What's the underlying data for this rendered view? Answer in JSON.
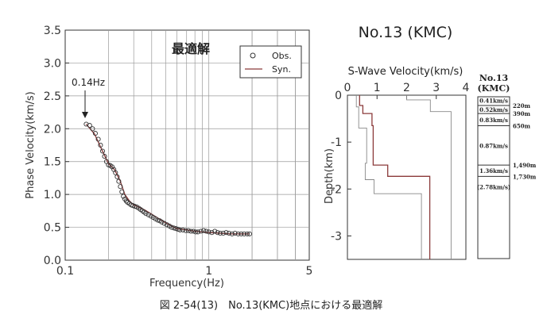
{
  "caption": "図 2-54(13)　No.13(KMC)地点における最適解",
  "chart_data": [
    {
      "type": "scatter",
      "title": "最適解",
      "xlabel": "Frequency(Hz)",
      "ylabel": "Phase Velocity(km/s)",
      "xscale": "log",
      "xlim": [
        0.1,
        5
      ],
      "ylim": [
        0,
        3.5
      ],
      "x_ticks": [
        0.1,
        1,
        5
      ],
      "x_tick_labels": [
        "0.1",
        "1",
        "5"
      ],
      "y_ticks": [
        0,
        0.5,
        1.0,
        1.5,
        2.0,
        2.5,
        3.0,
        3.5
      ],
      "y_tick_labels": [
        "0.0",
        "0.5",
        "1.0",
        "1.5",
        "2.0",
        "2.5",
        "3.0",
        "3.5"
      ],
      "grid": true,
      "legend": "top-right",
      "annotation": {
        "text": "0.14Hz",
        "x": 0.14,
        "y": 2.07
      },
      "series": [
        {
          "name": "Obs.",
          "marker": "open-circle",
          "color": "#333333",
          "x": [
            0.14,
            0.148,
            0.155,
            0.162,
            0.17,
            0.176,
            0.182,
            0.188,
            0.194,
            0.2,
            0.206,
            0.212,
            0.218,
            0.224,
            0.23,
            0.236,
            0.242,
            0.248,
            0.254,
            0.26,
            0.266,
            0.272,
            0.28,
            0.288,
            0.296,
            0.305,
            0.315,
            0.325,
            0.335,
            0.345,
            0.355,
            0.365,
            0.38,
            0.395,
            0.41,
            0.425,
            0.44,
            0.455,
            0.47,
            0.49,
            0.51,
            0.53,
            0.55,
            0.57,
            0.59,
            0.61,
            0.63,
            0.66,
            0.69,
            0.72,
            0.75,
            0.78,
            0.81,
            0.84,
            0.88,
            0.92,
            0.96,
            1.0,
            1.05,
            1.1,
            1.15,
            1.2,
            1.26,
            1.32,
            1.38,
            1.45,
            1.52,
            1.6,
            1.68,
            1.76,
            1.85,
            1.92
          ],
          "y": [
            2.07,
            2.05,
            2.0,
            1.93,
            1.84,
            1.75,
            1.66,
            1.58,
            1.5,
            1.45,
            1.44,
            1.42,
            1.38,
            1.33,
            1.27,
            1.2,
            1.12,
            1.04,
            0.97,
            0.93,
            0.9,
            0.88,
            0.86,
            0.84,
            0.83,
            0.82,
            0.81,
            0.79,
            0.77,
            0.75,
            0.73,
            0.71,
            0.69,
            0.67,
            0.65,
            0.63,
            0.61,
            0.6,
            0.58,
            0.56,
            0.54,
            0.52,
            0.5,
            0.49,
            0.48,
            0.47,
            0.46,
            0.46,
            0.45,
            0.45,
            0.44,
            0.44,
            0.43,
            0.43,
            0.44,
            0.45,
            0.44,
            0.43,
            0.42,
            0.44,
            0.42,
            0.41,
            0.41,
            0.42,
            0.41,
            0.4,
            0.41,
            0.4,
            0.4,
            0.4,
            0.4,
            0.4
          ]
        },
        {
          "name": "Syn.",
          "marker": "line",
          "color": "#8b3a3a",
          "x": [
            0.14,
            0.16,
            0.18,
            0.2,
            0.22,
            0.24,
            0.26,
            0.28,
            0.3,
            0.33,
            0.36,
            0.4,
            0.45,
            0.5,
            0.55,
            0.6,
            0.7,
            0.8,
            0.9,
            1.0,
            1.2,
            1.4,
            1.6,
            1.92
          ],
          "y": [
            2.07,
            1.92,
            1.68,
            1.47,
            1.38,
            1.22,
            1.0,
            0.9,
            0.84,
            0.8,
            0.76,
            0.7,
            0.63,
            0.57,
            0.52,
            0.48,
            0.46,
            0.44,
            0.43,
            0.42,
            0.41,
            0.4,
            0.4,
            0.4
          ]
        }
      ]
    },
    {
      "type": "line",
      "title": "No.13 (KMC)",
      "xlabel": "S-Wave Velocity(km/s)",
      "ylabel": "Depth(km)",
      "xlim": [
        0,
        4
      ],
      "ylim": [
        -3.5,
        0
      ],
      "x_ticks": [
        0,
        1,
        2,
        3,
        4
      ],
      "x_tick_labels": [
        "0",
        "1",
        "2",
        "3",
        "4"
      ],
      "y_ticks": [
        0,
        -1,
        -2,
        -3
      ],
      "y_tick_labels": [
        "0",
        "-1",
        "-2",
        "-3"
      ],
      "series": [
        {
          "role": "best-fit",
          "color": "#8b3a3a",
          "vs": [
            0.41,
            0.52,
            0.83,
            0.87,
            1.36,
            2.78
          ],
          "depth": [
            0.0,
            0.22,
            0.39,
            0.65,
            1.49,
            1.73,
            3.5
          ]
        },
        {
          "role": "lower-bound",
          "color": "#888888",
          "vs": [
            0.3,
            0.38,
            0.65,
            0.6,
            0.9,
            2.5
          ],
          "depth": [
            0.0,
            0.25,
            0.7,
            1.45,
            1.8,
            2.1,
            3.5
          ]
        },
        {
          "role": "upper-bound",
          "color": "#888888",
          "vs": [
            2.0,
            2.8,
            3.5,
            3.5,
            3.5,
            3.5
          ],
          "depth": [
            0.0,
            0.1,
            0.35,
            0.6,
            1.5,
            2.0,
            3.5
          ]
        }
      ]
    }
  ],
  "profile_table": {
    "title_line1": "No.13",
    "title_line2": "(KMC)",
    "layers": [
      {
        "vs": "0.41km/s",
        "depth": "220m"
      },
      {
        "vs": "0.52km/s",
        "depth": "390m"
      },
      {
        "vs": "0.83km/s",
        "depth": "650m"
      },
      {
        "vs": "0.87km/s",
        "depth": "1,490m"
      },
      {
        "vs": "1.36km/s",
        "depth": "1,730m"
      },
      {
        "vs": "(2.78km/s)",
        "depth": ""
      }
    ]
  }
}
